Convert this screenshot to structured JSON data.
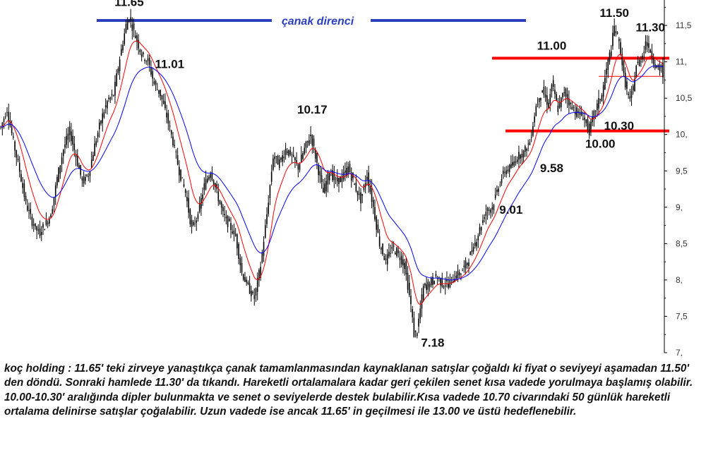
{
  "chart_data": {
    "type": "line",
    "ylim": [
      7,
      11.85
    ],
    "yticks": [
      7,
      7.5,
      8,
      8.5,
      9,
      9.5,
      10,
      10.5,
      11,
      11.5
    ],
    "ytick_labels": [
      "7,",
      "7,5",
      "8,",
      "8,5",
      "9,",
      "9,5",
      "10,",
      "10,5",
      "11,",
      "11,5"
    ],
    "price_anchors": [
      [
        0,
        10.1
      ],
      [
        4,
        10.35
      ],
      [
        8,
        9.9
      ],
      [
        12,
        9.5
      ],
      [
        16,
        9.05
      ],
      [
        20,
        8.8
      ],
      [
        24,
        8.65
      ],
      [
        28,
        8.75
      ],
      [
        32,
        8.9
      ],
      [
        36,
        9.4
      ],
      [
        40,
        9.8
      ],
      [
        44,
        10.05
      ],
      [
        48,
        9.7
      ],
      [
        52,
        9.35
      ],
      [
        56,
        9.45
      ],
      [
        60,
        9.85
      ],
      [
        64,
        10.2
      ],
      [
        68,
        10.45
      ],
      [
        72,
        10.55
      ],
      [
        76,
        11.05
      ],
      [
        80,
        11.5
      ],
      [
        82,
        11.62
      ],
      [
        86,
        11.35
      ],
      [
        90,
        11.1
      ],
      [
        94,
        11.01
      ],
      [
        98,
        10.7
      ],
      [
        102,
        10.55
      ],
      [
        106,
        10.25
      ],
      [
        110,
        9.9
      ],
      [
        114,
        9.5
      ],
      [
        118,
        9.2
      ],
      [
        122,
        8.7
      ],
      [
        126,
        8.9
      ],
      [
        130,
        9.3
      ],
      [
        134,
        9.5
      ],
      [
        138,
        9.2
      ],
      [
        142,
        8.9
      ],
      [
        146,
        8.75
      ],
      [
        150,
        8.6
      ],
      [
        154,
        8.1
      ],
      [
        158,
        7.9
      ],
      [
        162,
        7.75
      ],
      [
        166,
        8.2
      ],
      [
        170,
        8.9
      ],
      [
        174,
        9.7
      ],
      [
        178,
        9.6
      ],
      [
        182,
        9.8
      ],
      [
        186,
        9.7
      ],
      [
        190,
        9.55
      ],
      [
        194,
        9.8
      ],
      [
        198,
        10.0
      ],
      [
        202,
        9.6
      ],
      [
        206,
        9.2
      ],
      [
        210,
        9.5
      ],
      [
        214,
        9.35
      ],
      [
        218,
        9.4
      ],
      [
        222,
        9.55
      ],
      [
        226,
        9.3
      ],
      [
        230,
        9.1
      ],
      [
        234,
        9.45
      ],
      [
        238,
        9.0
      ],
      [
        242,
        8.5
      ],
      [
        246,
        8.25
      ],
      [
        250,
        8.45
      ],
      [
        254,
        8.35
      ],
      [
        258,
        8.2
      ],
      [
        262,
        7.65
      ],
      [
        264,
        7.25
      ],
      [
        266,
        7.3
      ],
      [
        270,
        7.9
      ],
      [
        274,
        7.95
      ],
      [
        278,
        8.05
      ],
      [
        282,
        7.95
      ],
      [
        286,
        7.95
      ],
      [
        290,
        8.05
      ],
      [
        294,
        8.1
      ],
      [
        298,
        8.25
      ],
      [
        302,
        8.45
      ],
      [
        306,
        8.7
      ],
      [
        310,
        8.95
      ],
      [
        314,
        9.0
      ],
      [
        318,
        9.3
      ],
      [
        322,
        9.5
      ],
      [
        326,
        9.55
      ],
      [
        330,
        9.7
      ],
      [
        334,
        9.75
      ],
      [
        338,
        9.9
      ],
      [
        342,
        10.4
      ],
      [
        346,
        10.6
      ],
      [
        350,
        10.4
      ],
      [
        352,
        10.7
      ],
      [
        356,
        10.35
      ],
      [
        360,
        10.6
      ],
      [
        364,
        10.4
      ],
      [
        368,
        10.3
      ],
      [
        372,
        10.25
      ],
      [
        376,
        10.05
      ],
      [
        380,
        10.35
      ],
      [
        384,
        10.55
      ],
      [
        388,
        11.0
      ],
      [
        390,
        11.2
      ],
      [
        392,
        11.48
      ],
      [
        394,
        11.35
      ],
      [
        396,
        11.15
      ],
      [
        398,
        10.8
      ],
      [
        400,
        10.6
      ],
      [
        402,
        10.45
      ],
      [
        404,
        10.65
      ],
      [
        406,
        10.95
      ],
      [
        408,
        11.0
      ],
      [
        410,
        11.1
      ],
      [
        412,
        11.28
      ],
      [
        414,
        11.2
      ],
      [
        416,
        11.1
      ],
      [
        418,
        10.95
      ],
      [
        420,
        10.9
      ],
      [
        422,
        10.95
      ],
      [
        423,
        10.8
      ]
    ],
    "resistance": {
      "label": "çanak direnci",
      "value": 11.65,
      "color": "#2b3fbf"
    },
    "support_lines": [
      {
        "value": 11.05,
        "color": "#ff0000"
      },
      {
        "value": 10.05,
        "color": "#ff0000"
      }
    ],
    "current_price_line": {
      "value": 10.8,
      "color": "#ff0000"
    },
    "colors": {
      "candle": "#000000",
      "ma_fast": "#ff0000",
      "ma_slow": "#0000ff",
      "axis": "#000000"
    },
    "annotations": [
      {
        "text": "11.65",
        "x": 82,
        "y": 11.65,
        "pos": "above"
      },
      {
        "text": "11.01",
        "x": 94,
        "y": 11.01,
        "pos": "right"
      },
      {
        "text": "10.17",
        "x": 199,
        "y": 10.17,
        "pos": "above"
      },
      {
        "text": "7.18",
        "x": 264,
        "y": 7.18,
        "pos": "right"
      },
      {
        "text": "9.01",
        "x": 314,
        "y": 9.01,
        "pos": "right"
      },
      {
        "text": "9.58",
        "x": 340,
        "y": 9.58,
        "pos": "right"
      },
      {
        "text": "11.00",
        "x": 352,
        "y": 11.05,
        "pos": "above"
      },
      {
        "text": "10.30",
        "x": 395,
        "y": 10.3,
        "pos": "below"
      },
      {
        "text": "10.00",
        "x": 383,
        "y": 10.05,
        "pos": "below"
      },
      {
        "text": "11.50",
        "x": 392,
        "y": 11.5,
        "pos": "above"
      },
      {
        "text": "11.30",
        "x": 415,
        "y": 11.3,
        "pos": "above"
      }
    ]
  },
  "commentary": "koç holding : 11.65' teki zirveye yanaştıkça çanak tamamlanmasından kaynaklanan satışlar çoğaldı ki fiyat o seviyeyi aşamadan 11.50' den döndü. Sonraki hamlede 11.30' da tıkandı. Hareketli ortalamalara kadar geri çekilen senet kısa vadede yorulmaya başlamış olabilir. 10.00-10.30' aralığında dipler bulunmakta ve senet o seviyelerde destek bulabilir.Kısa vadede 10.70 civarındaki 50 günlük hareketli ortalama delinirse satışlar çoğalabilir. Uzun vadede ise ancak 11.65' in geçilmesi ile 13.00 ve üstü hedeflenebilir."
}
